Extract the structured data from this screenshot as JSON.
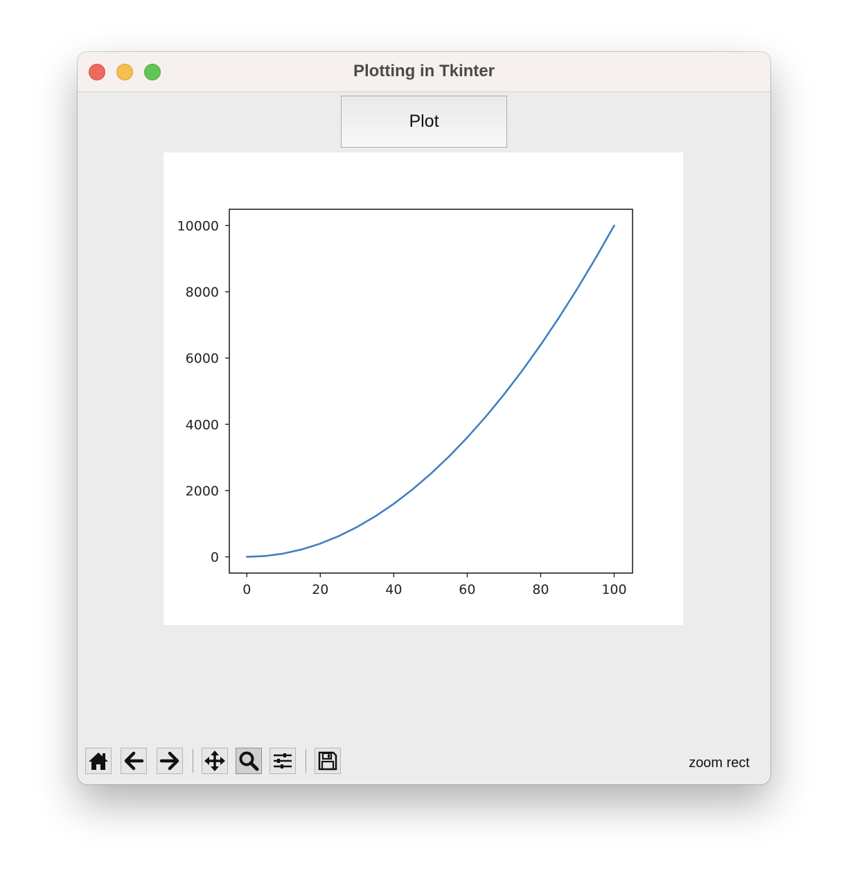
{
  "window": {
    "title": "Plotting in Tkinter",
    "controls": [
      "close",
      "minimize",
      "maximize"
    ]
  },
  "plot_button": {
    "label": "Plot"
  },
  "toolbar": {
    "buttons": [
      {
        "icon": "home-icon",
        "name": "Home"
      },
      {
        "icon": "back-arrow-icon",
        "name": "Back"
      },
      {
        "icon": "forward-arrow-icon",
        "name": "Forward"
      },
      {
        "icon": "pan-icon",
        "name": "Pan"
      },
      {
        "icon": "zoom-icon",
        "name": "Zoom",
        "active": true
      },
      {
        "icon": "subplots-icon",
        "name": "Subplots"
      },
      {
        "icon": "save-icon",
        "name": "Save"
      }
    ],
    "status": "zoom rect"
  },
  "colors": {
    "line": "#3f7fc0",
    "window_bg": "#ececec",
    "titlebar_bg": "#f6f1ef"
  },
  "chart_data": {
    "type": "line",
    "title": "",
    "xlabel": "",
    "ylabel": "",
    "xlim": [
      -4.76,
      105
    ],
    "ylim": [
      -490,
      10490
    ],
    "xticks": [
      0,
      20,
      40,
      60,
      80,
      100
    ],
    "yticks": [
      0,
      2000,
      4000,
      6000,
      8000,
      10000
    ],
    "grid": false,
    "series": [
      {
        "x": [
          0,
          5,
          10,
          15,
          20,
          25,
          30,
          35,
          40,
          45,
          50,
          55,
          60,
          65,
          70,
          75,
          80,
          85,
          90,
          95,
          100
        ],
        "y": [
          0,
          25,
          100,
          225,
          400,
          625,
          900,
          1225,
          1600,
          2025,
          2500,
          3025,
          3600,
          4225,
          4900,
          5625,
          6400,
          7225,
          8100,
          9025,
          10000
        ]
      }
    ]
  }
}
